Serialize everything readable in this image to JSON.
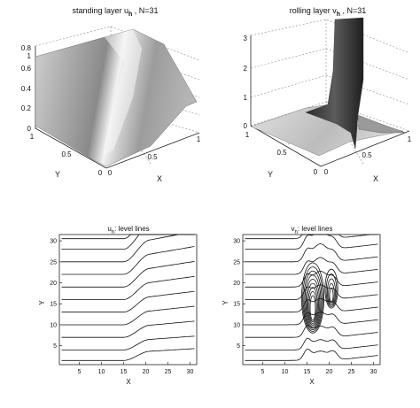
{
  "chart_data": [
    {
      "id": "surface-u",
      "type": "surface",
      "title_main": "standing layer u",
      "title_sub": "h",
      "title_suffix": " , N=31",
      "xlabel": "X",
      "ylabel": "Y",
      "xticks": [
        "0",
        "0.5",
        "1"
      ],
      "yticks": [
        "0",
        "0.5",
        "1"
      ],
      "zticks": [
        "0",
        "0.2",
        "0.4",
        "0.6",
        "0.8",
        "1"
      ],
      "xlim": [
        0,
        1
      ],
      "ylim": [
        0,
        1
      ],
      "zlim": [
        0,
        1
      ],
      "grid": true,
      "colormap": "gray"
    },
    {
      "id": "surface-v",
      "type": "surface",
      "title_main": "rolling layer v",
      "title_sub": "h",
      "title_suffix": " , N=31",
      "xlabel": "X",
      "ylabel": "Y",
      "xticks": [
        "0",
        "0.5",
        "1"
      ],
      "yticks": [
        "0",
        "0.5",
        "1"
      ],
      "zticks": [
        "0",
        "1",
        "2",
        "3"
      ],
      "xlim": [
        0,
        1
      ],
      "ylim": [
        0,
        1
      ],
      "zlim": [
        0,
        3
      ],
      "grid": true,
      "colormap": "gray"
    },
    {
      "id": "contour-u",
      "type": "contour",
      "title_main": "u",
      "title_sub": "h",
      "title_suffix": ": level lines",
      "xlabel": "X",
      "ylabel": "Y",
      "xticks": [
        5,
        10,
        15,
        20,
        25,
        30
      ],
      "yticks": [
        5,
        10,
        15,
        20,
        25,
        30
      ],
      "xlim": [
        0.5,
        31.5
      ],
      "ylim": [
        0.5,
        31.5
      ],
      "levels": [
        1.5,
        4,
        7,
        10,
        13,
        16,
        19,
        22,
        25,
        28,
        30.5
      ],
      "bend_x": [
        15,
        21
      ]
    },
    {
      "id": "contour-v",
      "type": "contour",
      "title_main": "v",
      "title_sub": "h",
      "title_suffix": ": level lines",
      "xlabel": "X",
      "ylabel": "Y",
      "xticks": [
        5,
        10,
        15,
        20,
        25,
        30
      ],
      "yticks": [
        5,
        10,
        15,
        20,
        25,
        30
      ],
      "xlim": [
        0.5,
        31.5
      ],
      "ylim": [
        0.5,
        31.5
      ],
      "levels": [
        1.5,
        4,
        7,
        10,
        13,
        16,
        19,
        22,
        25,
        28,
        30.5
      ],
      "peak_x": [
        15,
        18,
        21
      ]
    }
  ]
}
